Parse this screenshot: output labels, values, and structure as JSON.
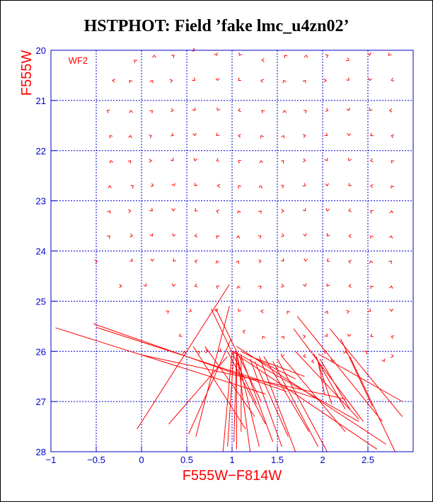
{
  "colors": {
    "axis": "#0000cc",
    "data": "#ff0000",
    "grid": "#0000cc",
    "title": "#000000"
  },
  "chart_data": {
    "type": "scatter",
    "title": "HSTPHOT: Field ’fake lmc_u4zn02’",
    "xlabel": "F555W−F814W",
    "ylabel": "F555W",
    "xlim": [
      -1,
      3
    ],
    "ylim": [
      28,
      20
    ],
    "x_ticks": [
      "−1",
      "−0.5",
      "0",
      "0.5",
      "1",
      "1.5",
      "2",
      "2.5"
    ],
    "x_tick_values": [
      -1,
      -0.5,
      0,
      0.5,
      1,
      1.5,
      2,
      2.5
    ],
    "y_ticks": [
      "20",
      "21",
      "22",
      "23",
      "24",
      "25",
      "26",
      "27",
      "28"
    ],
    "y_tick_values": [
      20,
      21,
      22,
      23,
      24,
      25,
      26,
      27,
      28
    ],
    "grid": true,
    "annotation": {
      "text": "WF2 ",
      "x": -0.7,
      "y": 20.2
    },
    "arrow_head_points": [
      [
        -0.08,
        20.2
      ],
      [
        0.14,
        20.1
      ],
      [
        0.36,
        20.1
      ],
      [
        0.59,
        20.0
      ],
      [
        0.83,
        20.1
      ],
      [
        1.08,
        20.1
      ],
      [
        1.33,
        20.2
      ],
      [
        1.58,
        20.1
      ],
      [
        1.82,
        20.1
      ],
      [
        2.06,
        20.1
      ],
      [
        2.29,
        20.2
      ],
      [
        2.52,
        20.1
      ],
      [
        2.73,
        20.1
      ],
      [
        -0.32,
        20.6
      ],
      [
        -0.13,
        20.6
      ],
      [
        0.12,
        20.6
      ],
      [
        0.34,
        20.6
      ],
      [
        0.59,
        20.6
      ],
      [
        0.84,
        20.6
      ],
      [
        1.07,
        20.6
      ],
      [
        1.32,
        20.6
      ],
      [
        1.57,
        20.6
      ],
      [
        1.81,
        20.6
      ],
      [
        2.04,
        20.6
      ],
      [
        2.29,
        20.6
      ],
      [
        2.52,
        20.6
      ],
      [
        2.76,
        20.6
      ],
      [
        -0.38,
        21.2
      ],
      [
        -0.12,
        21.2
      ],
      [
        0.12,
        21.2
      ],
      [
        0.35,
        21.2
      ],
      [
        0.59,
        21.2
      ],
      [
        0.84,
        21.2
      ],
      [
        1.07,
        21.2
      ],
      [
        1.33,
        21.2
      ],
      [
        1.58,
        21.2
      ],
      [
        1.82,
        21.2
      ],
      [
        2.06,
        21.2
      ],
      [
        2.29,
        21.2
      ],
      [
        2.52,
        21.2
      ],
      [
        2.74,
        21.2
      ],
      [
        -0.35,
        21.7
      ],
      [
        -0.12,
        21.7
      ],
      [
        0.11,
        21.7
      ],
      [
        0.35,
        21.7
      ],
      [
        0.59,
        21.7
      ],
      [
        0.83,
        21.7
      ],
      [
        1.07,
        21.7
      ],
      [
        1.32,
        21.7
      ],
      [
        1.57,
        21.7
      ],
      [
        1.81,
        21.7
      ],
      [
        2.05,
        21.7
      ],
      [
        2.29,
        21.7
      ],
      [
        2.53,
        21.7
      ],
      [
        2.76,
        21.7
      ],
      [
        -0.34,
        22.2
      ],
      [
        -0.12,
        22.2
      ],
      [
        0.11,
        22.2
      ],
      [
        0.35,
        22.2
      ],
      [
        0.59,
        22.2
      ],
      [
        0.83,
        22.2
      ],
      [
        1.07,
        22.2
      ],
      [
        1.32,
        22.2
      ],
      [
        1.57,
        22.2
      ],
      [
        1.81,
        22.2
      ],
      [
        2.05,
        22.2
      ],
      [
        2.29,
        22.2
      ],
      [
        2.53,
        22.2
      ],
      [
        2.76,
        22.2
      ],
      [
        -0.35,
        22.7
      ],
      [
        -0.09,
        22.7
      ],
      [
        0.13,
        22.7
      ],
      [
        0.36,
        22.7
      ],
      [
        0.59,
        22.7
      ],
      [
        0.84,
        22.7
      ],
      [
        1.07,
        22.7
      ],
      [
        1.32,
        22.7
      ],
      [
        1.57,
        22.7
      ],
      [
        1.81,
        22.7
      ],
      [
        2.05,
        22.7
      ],
      [
        2.29,
        22.7
      ],
      [
        2.53,
        22.7
      ],
      [
        2.76,
        22.7
      ],
      [
        -0.35,
        23.2
      ],
      [
        -0.12,
        23.2
      ],
      [
        0.12,
        23.2
      ],
      [
        0.35,
        23.2
      ],
      [
        0.59,
        23.2
      ],
      [
        0.83,
        23.2
      ],
      [
        1.07,
        23.2
      ],
      [
        1.32,
        23.2
      ],
      [
        1.57,
        23.2
      ],
      [
        1.81,
        23.2
      ],
      [
        2.05,
        23.2
      ],
      [
        2.29,
        23.2
      ],
      [
        2.53,
        23.2
      ],
      [
        2.76,
        23.2
      ],
      [
        -0.35,
        23.7
      ],
      [
        -0.1,
        23.7
      ],
      [
        0.12,
        23.7
      ],
      [
        0.35,
        23.7
      ],
      [
        0.59,
        23.7
      ],
      [
        0.83,
        23.7
      ],
      [
        1.07,
        23.7
      ],
      [
        1.32,
        23.7
      ],
      [
        1.57,
        23.7
      ],
      [
        1.81,
        23.7
      ],
      [
        2.05,
        23.7
      ],
      [
        2.29,
        23.7
      ],
      [
        2.53,
        23.7
      ],
      [
        2.76,
        23.7
      ],
      [
        -0.49,
        24.2
      ],
      [
        -0.1,
        24.2
      ],
      [
        0.12,
        24.2
      ],
      [
        0.35,
        24.2
      ],
      [
        0.59,
        24.2
      ],
      [
        0.83,
        24.2
      ],
      [
        1.07,
        24.2
      ],
      [
        1.32,
        24.2
      ],
      [
        1.57,
        24.2
      ],
      [
        1.81,
        24.2
      ],
      [
        2.05,
        24.2
      ],
      [
        2.29,
        24.2
      ],
      [
        2.53,
        24.2
      ],
      [
        2.76,
        24.2
      ],
      [
        -0.22,
        24.7
      ],
      [
        0.05,
        24.7
      ],
      [
        0.35,
        24.7
      ],
      [
        0.59,
        24.7
      ],
      [
        0.83,
        24.7
      ],
      [
        1.07,
        24.7
      ],
      [
        1.32,
        24.7
      ],
      [
        1.57,
        24.7
      ],
      [
        1.81,
        24.7
      ],
      [
        2.05,
        24.7
      ],
      [
        2.29,
        24.7
      ],
      [
        2.53,
        24.7
      ],
      [
        2.76,
        24.7
      ],
      [
        0.3,
        25.2
      ],
      [
        0.55,
        25.2
      ],
      [
        0.83,
        25.2
      ],
      [
        1.07,
        25.2
      ],
      [
        1.32,
        25.2
      ],
      [
        1.61,
        25.2
      ],
      [
        2.05,
        25.2
      ],
      [
        2.29,
        25.2
      ],
      [
        2.53,
        25.2
      ],
      [
        2.76,
        25.2
      ],
      [
        0.42,
        25.7
      ],
      [
        1.12,
        25.6
      ],
      [
        1.34,
        25.7
      ],
      [
        1.57,
        25.7
      ],
      [
        1.81,
        25.7
      ],
      [
        2.05,
        25.7
      ],
      [
        2.29,
        25.7
      ],
      [
        2.53,
        25.7
      ],
      [
        2.76,
        25.7
      ],
      [
        0.47,
        26.0
      ],
      [
        0.64,
        26.0
      ],
      [
        0.73,
        26.0
      ],
      [
        0.87,
        26.0
      ],
      [
        1.55,
        26.1
      ],
      [
        1.79,
        26.1
      ],
      [
        2.02,
        26.0
      ],
      [
        2.25,
        26.0
      ],
      [
        2.49,
        26.0
      ],
      [
        2.78,
        26.1
      ],
      [
        2.68,
        26.2
      ],
      [
        2.1,
        26.2
      ],
      [
        1.88,
        26.2
      ]
    ],
    "vectors": [
      [
        -0.95,
        25.53,
        1.37,
        26.85
      ],
      [
        -0.53,
        25.45,
        1.6,
        26.8
      ],
      [
        -0.5,
        25.52,
        1.95,
        26.95
      ],
      [
        0.0,
        26.07,
        2.25,
        26.95
      ],
      [
        -0.05,
        27.55,
        0.97,
        24.67
      ],
      [
        0.3,
        27.45,
        0.95,
        26.1
      ],
      [
        0.6,
        27.7,
        0.97,
        25.1
      ],
      [
        0.52,
        27.65,
        0.99,
        25.75
      ],
      [
        0.57,
        25.9,
        1.15,
        27.55
      ],
      [
        0.7,
        25.9,
        1.25,
        27.3
      ],
      [
        0.77,
        25.15,
        1.27,
        27.05
      ],
      [
        0.82,
        25.15,
        1.32,
        27.0
      ],
      [
        0.95,
        26.0,
        1.37,
        27.45
      ],
      [
        0.9,
        28.0,
        1.0,
        26.0
      ],
      [
        0.95,
        27.9,
        1.02,
        26.0
      ],
      [
        1.02,
        27.8,
        1.05,
        26.0
      ],
      [
        1.05,
        27.95,
        1.05,
        26.1
      ],
      [
        1.1,
        27.6,
        1.1,
        26.05
      ],
      [
        1.2,
        28.0,
        1.05,
        26.0
      ],
      [
        1.3,
        27.9,
        1.05,
        26.05
      ],
      [
        1.45,
        27.8,
        1.1,
        26.1
      ],
      [
        1.55,
        27.9,
        1.2,
        26.15
      ],
      [
        1.62,
        27.7,
        1.25,
        26.2
      ],
      [
        1.7,
        28.0,
        1.3,
        26.1
      ],
      [
        1.85,
        27.6,
        1.35,
        26.1
      ],
      [
        1.95,
        27.9,
        1.45,
        26.2
      ],
      [
        2.05,
        28.0,
        1.5,
        26.15
      ],
      [
        2.25,
        27.6,
        1.55,
        26.1
      ],
      [
        2.7,
        27.85,
        1.05,
        25.9
      ],
      [
        2.6,
        27.95,
        1.0,
        26.0
      ],
      [
        2.4,
        27.4,
        1.02,
        26.0
      ],
      [
        2.8,
        28.0,
        2.3,
        26.1
      ],
      [
        2.88,
        27.3,
        2.08,
        25.55
      ],
      [
        2.88,
        27.0,
        1.95,
        26.05
      ],
      [
        2.66,
        27.4,
        1.72,
        25.3
      ],
      [
        2.45,
        27.4,
        1.68,
        25.55
      ],
      [
        2.4,
        27.35,
        1.7,
        26.0
      ],
      [
        2.25,
        27.15,
        1.9,
        26.05
      ],
      [
        2.1,
        27.05,
        1.93,
        26.1
      ],
      [
        2.02,
        26.85,
        1.95,
        26.2
      ],
      [
        2.3,
        27.15,
        1.97,
        26.15
      ],
      [
        2.55,
        27.1,
        2.2,
        25.75
      ],
      [
        1.7,
        26.55,
        1.1,
        26.0
      ],
      [
        1.8,
        26.5,
        1.2,
        26.1
      ]
    ]
  }
}
